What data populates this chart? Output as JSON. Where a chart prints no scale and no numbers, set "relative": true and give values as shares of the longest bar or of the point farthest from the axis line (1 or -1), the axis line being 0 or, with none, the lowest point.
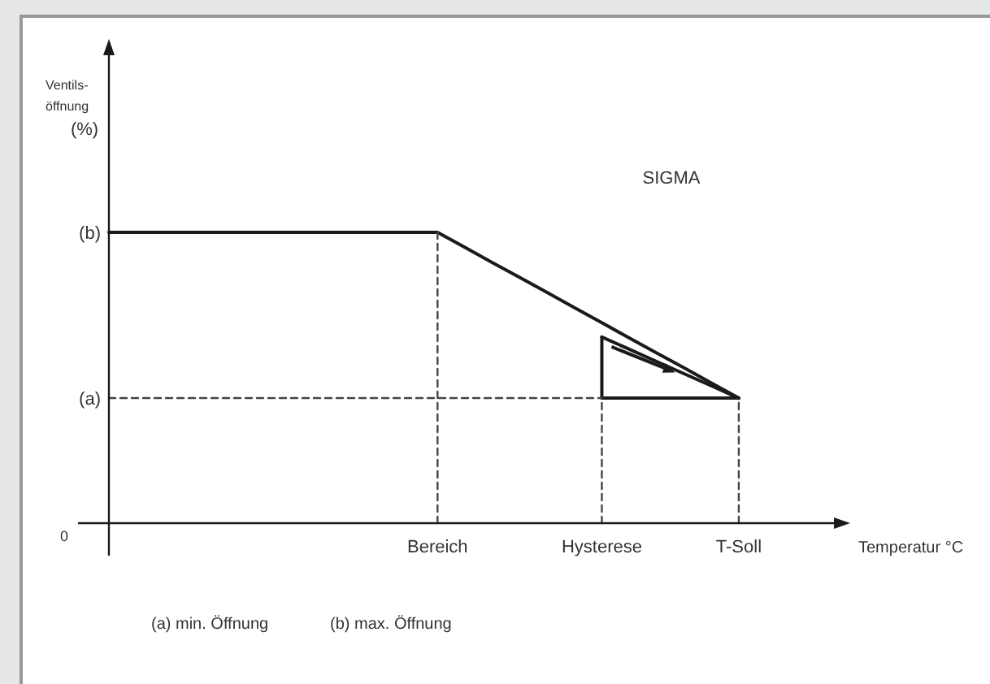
{
  "chart_data": {
    "type": "line",
    "relative": true,
    "xlabel": "Temperatur °C",
    "categories": [
      null,
      null,
      null,
      null,
      null,
      null,
      null,
      null,
      null,
      null,
      null,
      null,
      "Bereich",
      null,
      null,
      null,
      null,
      null,
      "Hysterese",
      null,
      null,
      null,
      null,
      "T-Soll",
      null,
      null,
      null
    ],
    "grid": false,
    "marker": "none",
    "series": [
      {
        "color": "#1a1a1a",
        "values": [
          1,
          1,
          1,
          1,
          1,
          1,
          1,
          1,
          1,
          1,
          1,
          1,
          1,
          0.948,
          0.896,
          0.845,
          0.793,
          0.741,
          0.689,
          0.637,
          0.585,
          0.534,
          0.482,
          0.43,
          null,
          null,
          null
        ],
        "line_style": "solid"
      },
      {
        "color": "#1a1a1a",
        "values": [
          null,
          null,
          null,
          null,
          null,
          null,
          null,
          null,
          null,
          null,
          null,
          null,
          null,
          null,
          null,
          null,
          null,
          null,
          0.64,
          0.598,
          0.556,
          0.514,
          0.472,
          0.43,
          null,
          null,
          null
        ],
        "line_style": "solid"
      },
      {
        "color": "#1a1a1a",
        "values": [
          null,
          null,
          null,
          null,
          null,
          null,
          null,
          null,
          null,
          null,
          null,
          null,
          null,
          null,
          null,
          null,
          null,
          null,
          0.43,
          0.43,
          0.43,
          0.43,
          0.43,
          0.43,
          null,
          null,
          null
        ],
        "line_style": "solid"
      },
      {
        "color": "#1a1a1a",
        "x": [
          "Hysterese",
          "Hysterese"
        ],
        "values": [
          0.43,
          0.64
        ],
        "line_style": "solid"
      },
      {
        "color": "#444444",
        "values": [
          0.43,
          0.43,
          0.43,
          0.43,
          0.43,
          0.43,
          0.43,
          0.43,
          0.43,
          0.43,
          0.43,
          0.43,
          0.43,
          0.43,
          0.43,
          0.43,
          0.43,
          0.43,
          0.43,
          null,
          null,
          null,
          null,
          null,
          null,
          null,
          null
        ],
        "line_style": "dashed"
      },
      {
        "color": "#444444",
        "x": [
          "Bereich",
          "Bereich"
        ],
        "values": [
          0,
          1
        ],
        "line_style": "dashed"
      },
      {
        "color": "#444444",
        "x": [
          "Hysterese",
          "Hysterese"
        ],
        "values": [
          0,
          0.43
        ],
        "line_style": "dashed"
      },
      {
        "color": "#444444",
        "x": [
          "T-Soll",
          "T-Soll"
        ],
        "values": [
          0,
          0.43
        ],
        "line_style": "dashed"
      }
    ],
    "annotations": [
      "SIGMA",
      "(a) min. Öffnung",
      "(b) max. Öffnung",
      "(b)",
      "(a)",
      "0",
      "Ventils-\nöffnung\n(%)"
    ]
  }
}
